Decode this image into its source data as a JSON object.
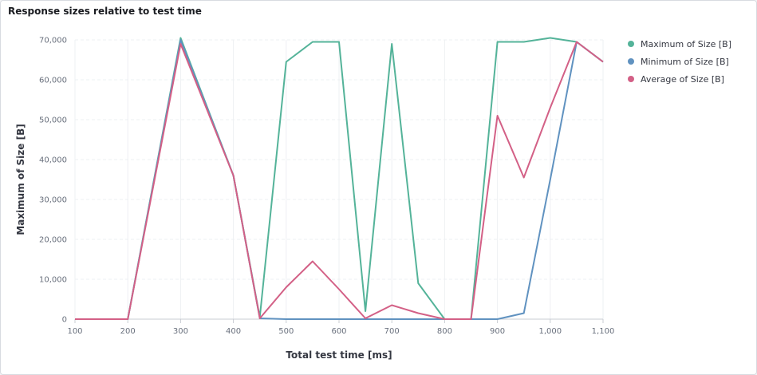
{
  "panel": {
    "title": "Response sizes relative to test time"
  },
  "chart_data": {
    "type": "line",
    "title": "Response sizes relative to test time",
    "xlabel": "Total test time [ms]",
    "ylabel": "Maximum of Size [B]",
    "xlim": [
      100,
      1100
    ],
    "ylim": [
      0,
      70000
    ],
    "x_ticks": [
      "100",
      "200",
      "300",
      "400",
      "500",
      "600",
      "700",
      "800",
      "900",
      "1,000",
      "1,100"
    ],
    "y_ticks": [
      "0",
      "10,000",
      "20,000",
      "30,000",
      "40,000",
      "50,000",
      "60,000",
      "70,000"
    ],
    "grid": true,
    "legend_position": "top-right",
    "x": [
      100,
      200,
      300,
      400,
      450,
      500,
      550,
      600,
      650,
      700,
      750,
      800,
      850,
      900,
      950,
      1000,
      1050,
      1100
    ],
    "series": [
      {
        "name": "Maximum of Size [B]",
        "color": "#54b399",
        "values": [
          0,
          0,
          70500,
          36000,
          500,
          64500,
          69500,
          69500,
          2000,
          69000,
          9000,
          0,
          0,
          69500,
          69500,
          70500,
          69500,
          64500
        ]
      },
      {
        "name": "Minimum of Size [B]",
        "color": "#6092c0",
        "values": [
          0,
          0,
          70000,
          36000,
          200,
          0,
          0,
          0,
          0,
          0,
          0,
          0,
          0,
          0,
          1500,
          35000,
          69500,
          64500
        ]
      },
      {
        "name": "Average of Size [B]",
        "color": "#d36086",
        "values": [
          0,
          0,
          69000,
          36000,
          200,
          8000,
          14500,
          7500,
          200,
          3500,
          1500,
          0,
          0,
          51000,
          35500,
          53000,
          69500,
          64500
        ]
      }
    ]
  }
}
